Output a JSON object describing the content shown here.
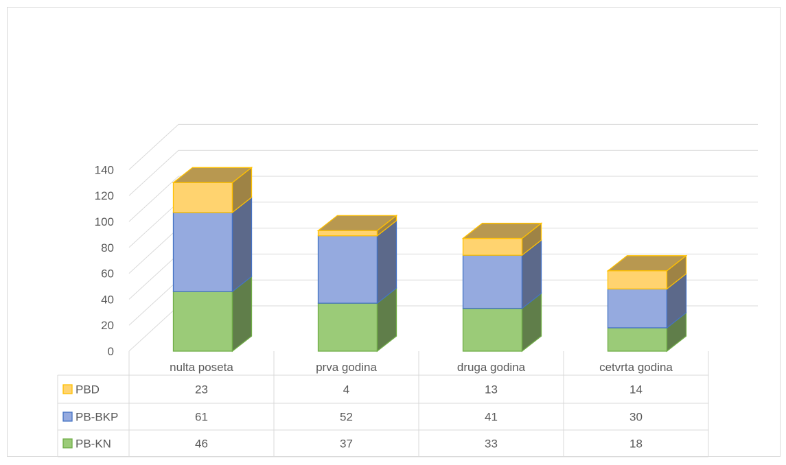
{
  "chart_data": {
    "type": "bar",
    "stacked": true,
    "three_d": true,
    "categories": [
      "nulta poseta",
      "prva godina",
      "druga godina",
      "cetvrta godina"
    ],
    "series": [
      {
        "name": "PB-KN",
        "values": [
          46,
          37,
          33,
          18
        ],
        "color": "#9BCB78",
        "edge": "#70AD47"
      },
      {
        "name": "PB-BKP",
        "values": [
          61,
          52,
          41,
          30
        ],
        "color": "#95AADF",
        "edge": "#4472C4"
      },
      {
        "name": "PBD",
        "values": [
          23,
          4,
          13,
          14
        ],
        "color": "#FFD36F",
        "edge": "#FFC000"
      }
    ],
    "ylim": [
      0,
      140
    ],
    "yticks": [
      0,
      20,
      40,
      60,
      80,
      100,
      120,
      140
    ],
    "grid": true,
    "legend": "data-table"
  }
}
